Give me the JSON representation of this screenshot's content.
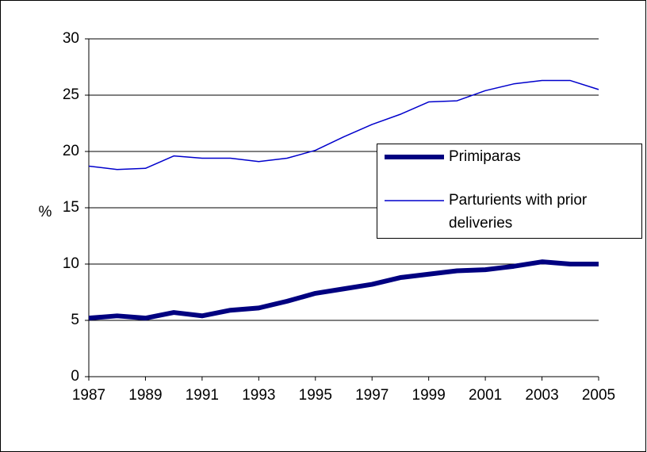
{
  "chart_data": {
    "type": "line",
    "ylabel": "%",
    "x": [
      1987,
      1988,
      1989,
      1990,
      1991,
      1992,
      1993,
      1994,
      1995,
      1996,
      1997,
      1998,
      1999,
      2000,
      2001,
      2002,
      2003,
      2004,
      2005
    ],
    "series": [
      {
        "name": "Primiparas",
        "color": "#000080",
        "width": 6,
        "values": [
          5.2,
          5.4,
          5.2,
          5.7,
          5.4,
          5.9,
          6.1,
          6.7,
          7.4,
          7.8,
          8.2,
          8.8,
          9.1,
          9.4,
          9.5,
          9.8,
          10.2,
          10.0,
          10.0
        ]
      },
      {
        "name": "Parturients with prior deliveries",
        "color": "#0000cc",
        "width": 1.5,
        "values": [
          18.7,
          18.4,
          18.5,
          19.6,
          19.4,
          19.4,
          19.1,
          19.4,
          20.1,
          21.3,
          22.4,
          23.3,
          24.4,
          24.5,
          25.4,
          26.0,
          26.3,
          26.3,
          25.5
        ]
      }
    ],
    "xlim": [
      1987,
      2005
    ],
    "xticks": [
      1987,
      1989,
      1991,
      1993,
      1995,
      1997,
      1999,
      2001,
      2003,
      2005
    ],
    "ylim": [
      0,
      30
    ],
    "yticks": [
      0,
      5,
      10,
      15,
      20,
      25,
      30
    ],
    "grid": true,
    "legend": "right"
  }
}
